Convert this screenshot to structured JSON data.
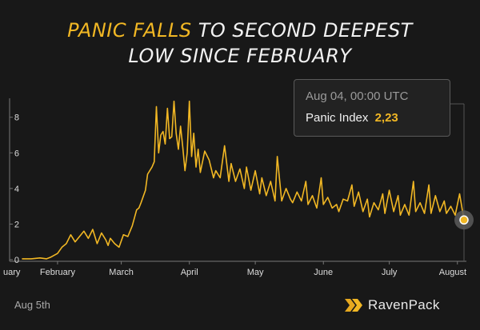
{
  "title": {
    "highlight": "PANIC FALLS",
    "rest_line1": "TO SECOND DEEPEST",
    "line2": "LOW SINCE FEBRUARY"
  },
  "footer": {
    "date": "Aug 5th",
    "brand": "RavenPack",
    "brand_icon": "double-chevron-icon"
  },
  "tooltip": {
    "date": "Aug  04, 00:00 UTC",
    "label": "Panic Index",
    "value": "2,23"
  },
  "colors": {
    "background": "#181818",
    "line": "#f1b724",
    "axis_text": "#dddddd",
    "axis_line": "#777777"
  },
  "chart_data": {
    "type": "line",
    "title": "PANIC FALLS TO SECOND DEEPEST LOW SINCE FEBRUARY",
    "xlabel": "",
    "ylabel": "",
    "ylim": [
      0,
      9.2
    ],
    "yticks": [
      "0",
      "2",
      "4",
      "6",
      "8"
    ],
    "xticks": [
      "uary",
      "February",
      "March",
      "April",
      "May",
      "June",
      "July",
      "August"
    ],
    "xrange": [
      "2020-01-16",
      "2020-08-04"
    ],
    "grid": false,
    "series": [
      {
        "name": "Panic Index",
        "x": [
          "2020-01-16",
          "2020-01-20",
          "2020-01-24",
          "2020-01-27",
          "2020-01-29",
          "2020-02-01",
          "2020-02-03",
          "2020-02-05",
          "2020-02-07",
          "2020-02-09",
          "2020-02-11",
          "2020-02-13",
          "2020-02-15",
          "2020-02-17",
          "2020-02-19",
          "2020-02-21",
          "2020-02-23",
          "2020-02-24",
          "2020-02-25",
          "2020-02-27",
          "2020-02-29",
          "2020-03-02",
          "2020-03-04",
          "2020-03-06",
          "2020-03-08",
          "2020-03-09",
          "2020-03-10",
          "2020-03-12",
          "2020-03-13",
          "2020-03-15",
          "2020-03-16",
          "2020-03-17",
          "2020-03-18",
          "2020-03-19",
          "2020-03-20",
          "2020-03-21",
          "2020-03-22",
          "2020-03-23",
          "2020-03-24",
          "2020-03-25",
          "2020-03-26",
          "2020-03-27",
          "2020-03-28",
          "2020-03-29",
          "2020-03-30",
          "2020-03-31",
          "2020-04-01",
          "2020-04-02",
          "2020-04-03",
          "2020-04-04",
          "2020-04-05",
          "2020-04-06",
          "2020-04-08",
          "2020-04-10",
          "2020-04-12",
          "2020-04-13",
          "2020-04-15",
          "2020-04-17",
          "2020-04-19",
          "2020-04-20",
          "2020-04-22",
          "2020-04-24",
          "2020-04-26",
          "2020-04-27",
          "2020-04-29",
          "2020-05-01",
          "2020-05-03",
          "2020-05-04",
          "2020-05-06",
          "2020-05-08",
          "2020-05-10",
          "2020-05-11",
          "2020-05-13",
          "2020-05-15",
          "2020-05-17",
          "2020-05-18",
          "2020-05-20",
          "2020-05-22",
          "2020-05-24",
          "2020-05-25",
          "2020-05-27",
          "2020-05-29",
          "2020-05-31",
          "2020-06-01",
          "2020-06-03",
          "2020-06-05",
          "2020-06-07",
          "2020-06-08",
          "2020-06-10",
          "2020-06-12",
          "2020-06-14",
          "2020-06-15",
          "2020-06-17",
          "2020-06-19",
          "2020-06-21",
          "2020-06-22",
          "2020-06-24",
          "2020-06-26",
          "2020-06-28",
          "2020-06-29",
          "2020-07-01",
          "2020-07-03",
          "2020-07-05",
          "2020-07-06",
          "2020-07-08",
          "2020-07-10",
          "2020-07-12",
          "2020-07-13",
          "2020-07-15",
          "2020-07-17",
          "2020-07-19",
          "2020-07-20",
          "2020-07-22",
          "2020-07-24",
          "2020-07-26",
          "2020-07-27",
          "2020-07-29",
          "2020-07-31",
          "2020-08-02",
          "2020-08-04"
        ],
        "y": [
          0.05,
          0.05,
          0.1,
          0.05,
          0.15,
          0.35,
          0.7,
          0.9,
          1.4,
          1.0,
          1.3,
          1.6,
          1.2,
          1.7,
          0.9,
          1.5,
          1.1,
          0.8,
          1.2,
          0.9,
          0.7,
          1.4,
          1.3,
          1.9,
          2.8,
          2.9,
          3.2,
          3.9,
          4.8,
          5.2,
          5.5,
          8.6,
          6.0,
          7.0,
          7.2,
          6.5,
          8.5,
          6.8,
          6.9,
          8.9,
          7.1,
          6.2,
          7.5,
          6.3,
          5.0,
          6.0,
          8.9,
          5.8,
          7.1,
          5.2,
          6.2,
          4.9,
          6.1,
          5.6,
          4.6,
          5.0,
          4.6,
          6.4,
          4.4,
          5.4,
          4.4,
          5.1,
          4.0,
          5.2,
          3.9,
          5.0,
          3.7,
          4.6,
          3.6,
          4.4,
          3.3,
          5.8,
          3.3,
          4.0,
          3.4,
          3.2,
          3.8,
          3.3,
          4.4,
          3.1,
          3.6,
          2.9,
          4.6,
          3.1,
          3.5,
          2.9,
          3.1,
          2.7,
          3.4,
          3.3,
          4.2,
          3.0,
          3.8,
          2.7,
          3.4,
          2.4,
          3.2,
          2.8,
          3.7,
          2.6,
          3.9,
          2.7,
          3.6,
          2.5,
          3.1,
          2.5,
          4.4,
          2.7,
          3.2,
          2.6,
          4.2,
          2.6,
          3.6,
          2.7,
          3.3,
          2.6,
          3.0,
          2.5,
          3.7,
          2.23
        ]
      }
    ]
  }
}
